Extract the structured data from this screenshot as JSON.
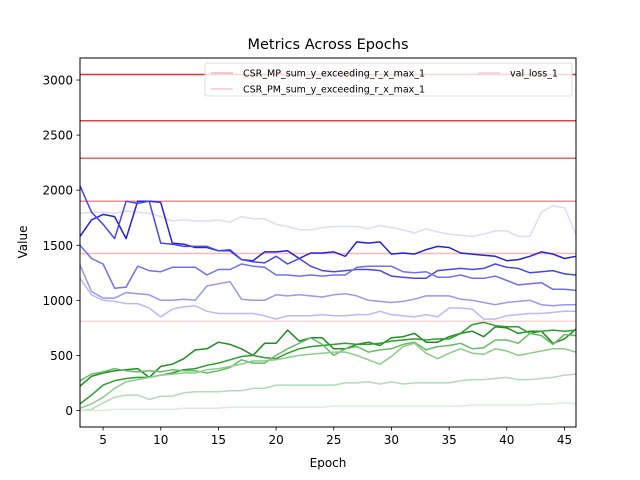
{
  "chart_data": {
    "type": "line",
    "title": "Metrics Across Epochs",
    "xlabel": "Epoch",
    "ylabel": "Value",
    "xlim": [
      3,
      46
    ],
    "ylim": [
      -150,
      3200
    ],
    "xticks": [
      5,
      10,
      15,
      20,
      25,
      30,
      35,
      40,
      45
    ],
    "yticks": [
      0,
      500,
      1000,
      1500,
      2000,
      2500,
      3000
    ],
    "grid": false,
    "legend_position": "top-right",
    "legend": [
      {
        "label": "CSR_MP_sum_y_exceeding_r_x_max_1",
        "color": "#f4b6b6"
      },
      {
        "label": "CSR_PM_sum_y_exceeding_r_x_max_1",
        "color": "#f8caca"
      },
      {
        "label": "val_loss_1",
        "color": "#e8cfe8"
      }
    ],
    "hlines": [
      {
        "value": 3050,
        "color": "#e03030"
      },
      {
        "value": 2630,
        "color": "#e44040"
      },
      {
        "value": 2290,
        "color": "#ec6060"
      },
      {
        "value": 1900,
        "color": "#f29090"
      },
      {
        "value": 1425,
        "color": "#f6b8b8"
      },
      {
        "value": 810,
        "color": "#fad8d8"
      }
    ],
    "x": [
      3,
      4,
      5,
      6,
      7,
      8,
      9,
      10,
      11,
      12,
      13,
      14,
      15,
      16,
      17,
      18,
      19,
      20,
      21,
      22,
      23,
      24,
      25,
      26,
      27,
      28,
      29,
      30,
      31,
      32,
      33,
      34,
      35,
      36,
      37,
      38,
      39,
      40,
      41,
      42,
      43,
      44,
      45,
      46
    ],
    "series": [
      {
        "color": "#dcdcf8",
        "values": [
          1790,
          1800,
          1800,
          1790,
          1810,
          1800,
          1790,
          1760,
          1720,
          1730,
          1720,
          1720,
          1730,
          1710,
          1760,
          1740,
          1740,
          1690,
          1670,
          1640,
          1640,
          1660,
          1670,
          1670,
          1670,
          1650,
          1680,
          1660,
          1640,
          1610,
          1650,
          1620,
          1600,
          1590,
          1580,
          1600,
          1630,
          1630,
          1580,
          1580,
          1800,
          1860,
          1840,
          1600
        ]
      },
      {
        "color": "#2222dd",
        "values": [
          1580,
          1730,
          1780,
          1760,
          1560,
          1900,
          1900,
          1890,
          1520,
          1510,
          1480,
          1480,
          1450,
          1450,
          1370,
          1360,
          1440,
          1440,
          1450,
          1380,
          1430,
          1430,
          1440,
          1400,
          1530,
          1520,
          1530,
          1420,
          1430,
          1420,
          1460,
          1490,
          1480,
          1430,
          1420,
          1410,
          1400,
          1360,
          1370,
          1400,
          1440,
          1420,
          1380,
          1400
        ]
      },
      {
        "color": "#4848e8",
        "values": [
          2040,
          1800,
          1690,
          1560,
          1900,
          1880,
          1900,
          1520,
          1510,
          1490,
          1490,
          1490,
          1450,
          1460,
          1370,
          1350,
          1340,
          1400,
          1330,
          1380,
          1310,
          1270,
          1260,
          1270,
          1280,
          1280,
          1270,
          1220,
          1210,
          1200,
          1200,
          1270,
          1280,
          1290,
          1280,
          1290,
          1330,
          1300,
          1290,
          1250,
          1260,
          1270,
          1240,
          1230
        ]
      },
      {
        "color": "#7070ee",
        "values": [
          1500,
          1380,
          1330,
          1110,
          1120,
          1310,
          1270,
          1260,
          1300,
          1300,
          1300,
          1230,
          1280,
          1280,
          1330,
          1310,
          1300,
          1230,
          1230,
          1220,
          1230,
          1220,
          1230,
          1230,
          1300,
          1310,
          1310,
          1310,
          1260,
          1250,
          1260,
          1210,
          1210,
          1230,
          1200,
          1200,
          1220,
          1180,
          1140,
          1150,
          1160,
          1100,
          1100,
          1090
        ]
      },
      {
        "color": "#9898f2",
        "values": [
          1320,
          1080,
          1020,
          1020,
          1070,
          1060,
          1050,
          1000,
          1000,
          1010,
          1000,
          1130,
          1150,
          1170,
          1010,
          1000,
          1000,
          1050,
          1040,
          1050,
          1040,
          1030,
          1050,
          1060,
          1040,
          1000,
          990,
          980,
          990,
          1010,
          1040,
          1040,
          1040,
          1010,
          1000,
          980,
          960,
          980,
          990,
          1000,
          960,
          950,
          960,
          960
        ]
      },
      {
        "color": "#babaf6",
        "values": [
          1200,
          1050,
          1000,
          990,
          970,
          970,
          930,
          850,
          920,
          940,
          950,
          900,
          880,
          880,
          880,
          880,
          860,
          830,
          860,
          860,
          860,
          870,
          860,
          860,
          870,
          870,
          900,
          870,
          860,
          850,
          870,
          850,
          930,
          930,
          920,
          830,
          830,
          860,
          870,
          880,
          880,
          890,
          900,
          900
        ]
      },
      {
        "color": "#228b22",
        "values": [
          220,
          310,
          340,
          360,
          370,
          380,
          300,
          400,
          420,
          470,
          550,
          560,
          620,
          600,
          560,
          500,
          610,
          610,
          730,
          630,
          660,
          660,
          560,
          560,
          600,
          620,
          590,
          660,
          670,
          700,
          620,
          620,
          670,
          700,
          720,
          670,
          760,
          750,
          700,
          720,
          720,
          610,
          650,
          740
        ]
      },
      {
        "color": "#2e9e2e",
        "values": [
          60,
          140,
          230,
          270,
          290,
          300,
          300,
          320,
          340,
          370,
          380,
          410,
          430,
          460,
          490,
          500,
          480,
          470,
          520,
          560,
          580,
          590,
          600,
          610,
          600,
          600,
          610,
          630,
          640,
          650,
          640,
          650,
          650,
          700,
          780,
          800,
          770,
          760,
          760,
          700,
          720,
          730,
          720,
          730
        ]
      },
      {
        "color": "#66bb66",
        "values": [
          270,
          330,
          350,
          380,
          360,
          350,
          360,
          350,
          370,
          360,
          360,
          340,
          360,
          390,
          460,
          430,
          430,
          500,
          560,
          610,
          660,
          600,
          500,
          560,
          580,
          530,
          550,
          560,
          600,
          620,
          550,
          580,
          590,
          610,
          560,
          570,
          640,
          640,
          610,
          700,
          680,
          600,
          690,
          680
        ]
      },
      {
        "color": "#8ccc8c",
        "values": [
          20,
          60,
          120,
          200,
          260,
          280,
          300,
          320,
          330,
          340,
          340,
          370,
          380,
          400,
          420,
          450,
          450,
          460,
          480,
          500,
          510,
          520,
          530,
          530,
          500,
          460,
          420,
          490,
          580,
          610,
          520,
          470,
          520,
          560,
          520,
          510,
          560,
          540,
          500,
          520,
          540,
          560,
          560,
          530
        ]
      },
      {
        "color": "#b2dcb2",
        "values": [
          0,
          10,
          70,
          120,
          140,
          140,
          100,
          130,
          130,
          160,
          170,
          170,
          170,
          180,
          180,
          200,
          200,
          230,
          230,
          230,
          230,
          230,
          230,
          250,
          250,
          260,
          240,
          260,
          240,
          250,
          250,
          250,
          250,
          270,
          280,
          280,
          290,
          300,
          280,
          280,
          290,
          300,
          320,
          330
        ]
      },
      {
        "color": "#d8eed8",
        "values": [
          0,
          0,
          0,
          10,
          10,
          10,
          10,
          10,
          10,
          20,
          20,
          20,
          20,
          30,
          30,
          30,
          30,
          30,
          30,
          30,
          30,
          30,
          40,
          40,
          40,
          40,
          40,
          40,
          40,
          40,
          40,
          40,
          40,
          40,
          50,
          50,
          50,
          50,
          50,
          50,
          60,
          60,
          70,
          60
        ]
      }
    ]
  }
}
